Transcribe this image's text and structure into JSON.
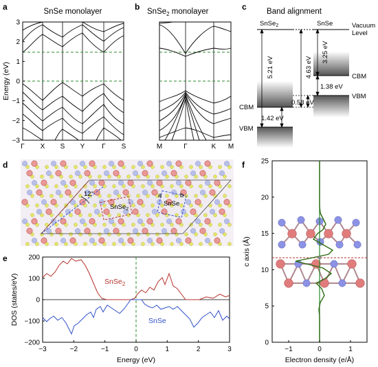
{
  "labels": {
    "a": "a",
    "b": "b",
    "c": "c",
    "d": "d",
    "e": "e",
    "f": "f"
  },
  "panel_a": {
    "title": "SnSe monolayer",
    "ylabel": "Energy (eV)",
    "yticks": [
      "3",
      "2",
      "1",
      "0",
      "−1",
      "−2",
      "−3"
    ],
    "kpoints": [
      "Γ",
      "X",
      "S",
      "Y",
      "Γ",
      "S"
    ]
  },
  "panel_b": {
    "title_main": "SnSe",
    "title_sub": "2",
    "title_rest": " monolayer",
    "kpoints": [
      "M",
      "Γ",
      "K",
      "M"
    ]
  },
  "panel_c": {
    "title": "Band alignment",
    "left_main": "SnSe",
    "left_sub": "2",
    "right": "SnSe",
    "vacuum1": "Vacuum",
    "vacuum2": "Level",
    "e1": "5.21 eV",
    "e2": "4.63 eV",
    "e3": "3.25 eV",
    "e4": "1.38 eV",
    "e5": "0.58 eV",
    "e6": "1.42 eV",
    "cbm_left": "CBM",
    "vbm_left": "VBM",
    "cbm_right": "CBM",
    "vbm_right": "VBM"
  },
  "panel_d": {
    "angle": "12°",
    "lbl_snse2": "SnSe",
    "lbl_snse2_sub": "2",
    "lbl_snse": "SnSe",
    "a": "a",
    "b": "b"
  },
  "panel_e": {
    "ylabel": "DOS (states/eV)",
    "xlabel": "Energy (eV)",
    "yticks": [
      "200",
      "100",
      "0",
      "−100",
      "−200"
    ],
    "xticks": [
      "−3",
      "−2",
      "−1",
      "0",
      "1",
      "2",
      "3"
    ],
    "top_label": "SnSe",
    "top_sub": "2",
    "bottom_label": "SnSe"
  },
  "panel_f": {
    "ylabel": "c axis (Å)",
    "xlabel": "Electron density (e/Å)",
    "yticks": [
      "25",
      "20",
      "15",
      "10",
      "5",
      "0"
    ],
    "xticks": [
      "−1",
      "0",
      "1"
    ]
  },
  "colors": {
    "green": "#2a8a2a",
    "red": "#b5302a",
    "blue": "#2f4fc9",
    "dark": "#2a6a10"
  }
}
